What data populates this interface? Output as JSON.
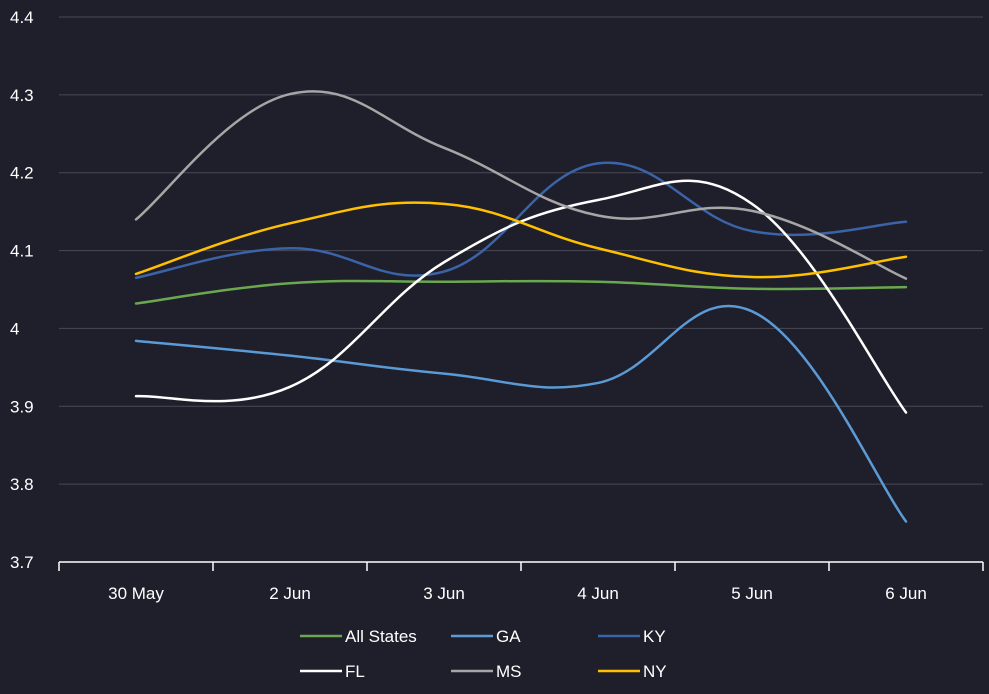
{
  "chart_data": {
    "type": "line",
    "title": "",
    "xlabel": "",
    "ylabel": "",
    "categories": [
      "30 May",
      "2 Jun",
      "3 Jun",
      "4 Jun",
      "5 Jun",
      "6 Jun"
    ],
    "ylim": [
      3.7,
      4.4
    ],
    "yticks": [
      "3.7",
      "3.8",
      "3.9",
      "4",
      "4.1",
      "4.2",
      "4.3",
      "4.4"
    ],
    "grid": true,
    "legend_position": "bottom",
    "background": "#1f1e2b",
    "series": [
      {
        "name": "All States",
        "color": "#6aa84f",
        "values": [
          4.032,
          4.058,
          4.06,
          4.06,
          4.051,
          4.053
        ]
      },
      {
        "name": "GA",
        "color": "#5b9bd5",
        "values": [
          3.984,
          3.965,
          3.942,
          3.93,
          4.022,
          3.752
        ]
      },
      {
        "name": "KY",
        "color": "#3a63a8",
        "values": [
          4.065,
          4.103,
          4.073,
          4.212,
          4.125,
          4.137
        ]
      },
      {
        "name": "FL",
        "color": "#ffffff",
        "values": [
          3.913,
          3.925,
          4.085,
          4.165,
          4.16,
          3.892
        ]
      },
      {
        "name": "MS",
        "color": "#a6a6a6",
        "values": [
          4.14,
          4.301,
          4.232,
          4.145,
          4.151,
          4.064
        ]
      },
      {
        "name": "NY",
        "color": "#ffc000",
        "values": [
          4.07,
          4.135,
          4.16,
          4.103,
          4.066,
          4.092
        ]
      }
    ]
  }
}
